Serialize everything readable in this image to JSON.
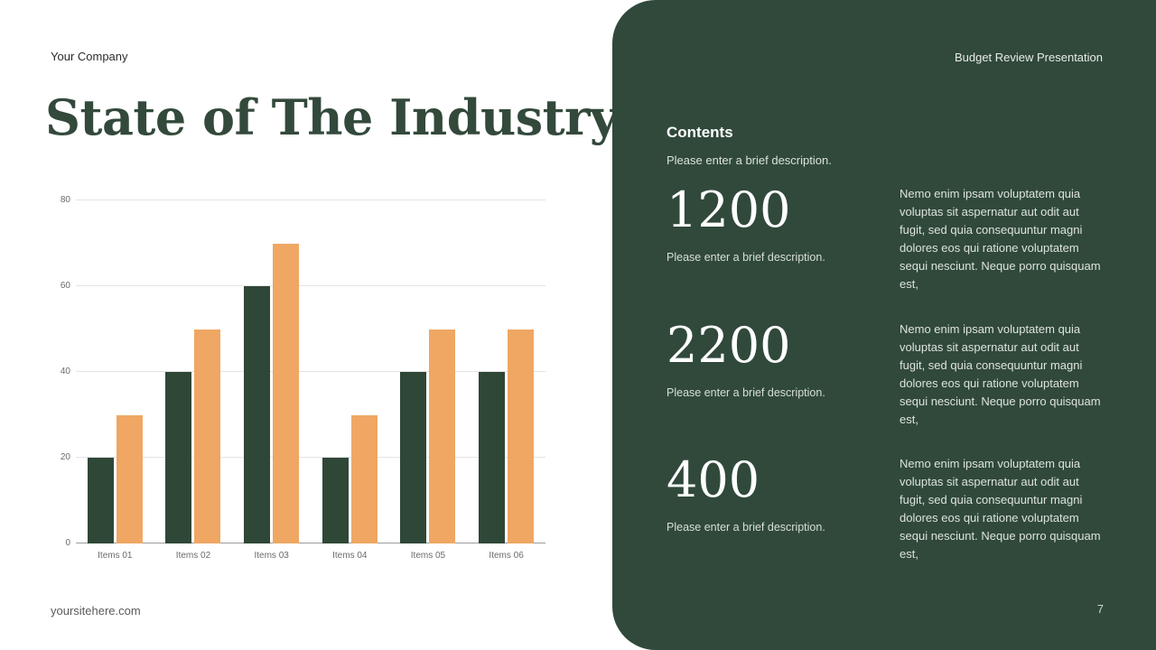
{
  "slide": {
    "company_label": "Your Company",
    "title": "State of The Industry",
    "footer_url": "yoursitehere.com"
  },
  "panel": {
    "header_label": "Budget Review Presentation",
    "contents_title": "Contents",
    "contents_subtitle": "Please enter a brief description.",
    "page_number": "7",
    "items": [
      {
        "value": "1200",
        "caption": "Please enter a brief description.",
        "body": "Nemo enim ipsam voluptatem quia voluptas sit aspernatur aut odit aut fugit, sed quia consequuntur magni dolores eos qui ratione voluptatem sequi nesciunt. Neque porro quisquam est,"
      },
      {
        "value": "2200",
        "caption": "Please enter a brief description.",
        "body": "Nemo enim ipsam voluptatem quia voluptas sit aspernatur aut odit aut fugit, sed quia consequuntur magni dolores eos qui ratione voluptatem sequi nesciunt. Neque porro quisquam est,"
      },
      {
        "value": "400",
        "caption": "Please enter a brief description.",
        "body": "Nemo enim ipsam voluptatem quia voluptas sit aspernatur aut odit aut fugit, sed quia consequuntur magni dolores eos qui ratione voluptatem sequi nesciunt. Neque porro quisquam est,"
      }
    ]
  },
  "chart_data": {
    "type": "bar",
    "title": "",
    "categories": [
      "Items 01",
      "Items 02",
      "Items 03",
      "Items 04",
      "Items 05",
      "Items 06"
    ],
    "series": [
      {
        "name": "dark-green",
        "color": "#2f4737",
        "values": [
          20,
          40,
          60,
          20,
          40,
          40
        ]
      },
      {
        "name": "orange",
        "color": "#efa763",
        "values": [
          30,
          50,
          70,
          30,
          50,
          50
        ]
      }
    ],
    "xlabel": "",
    "ylabel": "",
    "ylim": [
      0,
      80
    ],
    "yticks": [
      0,
      20,
      40,
      60,
      80
    ],
    "grid": true,
    "legend_position": "none"
  },
  "colors": {
    "panel_background": "#30493b",
    "bar_dark": "#2f4737",
    "bar_orange": "#efa763",
    "title_text": "#33493b"
  }
}
